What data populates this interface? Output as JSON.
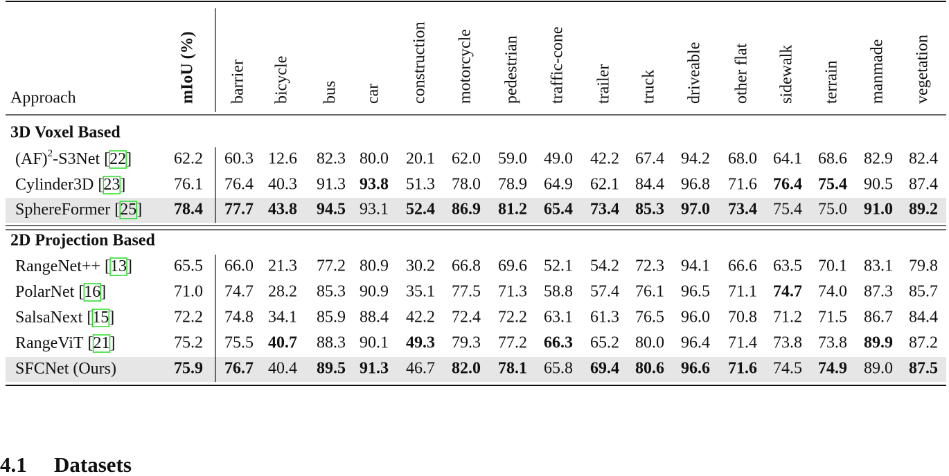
{
  "table": {
    "header": {
      "approach": "Approach",
      "columns": [
        "mIoU (%)",
        "barrier",
        "bicycle",
        "bus",
        "car",
        "construction",
        "motorcycle",
        "pedestrian",
        "traffic-cone",
        "trailer",
        "truck",
        "driveable",
        "other flat",
        "sidewalk",
        "terrain",
        "manmade",
        "vegetation"
      ]
    },
    "sections": [
      {
        "title": "3D Voxel Based",
        "rows": [
          {
            "name": "(AF)",
            "sup": "2",
            "suffix": "-S3Net",
            "cite": "[22]",
            "values": [
              "62.2",
              "60.3",
              "12.6",
              "82.3",
              "80.0",
              "20.1",
              "62.0",
              "59.0",
              "49.0",
              "42.2",
              "67.4",
              "94.2",
              "68.0",
              "64.1",
              "68.6",
              "82.9",
              "82.4"
            ],
            "bold": []
          },
          {
            "name": "Cylinder3D",
            "cite": "[23]",
            "values": [
              "76.1",
              "76.4",
              "40.3",
              "91.3",
              "93.8",
              "51.3",
              "78.0",
              "78.9",
              "64.9",
              "62.1",
              "84.4",
              "96.8",
              "71.6",
              "76.4",
              "75.4",
              "90.5",
              "87.4"
            ],
            "bold": [
              4,
              13,
              14
            ]
          },
          {
            "name": "SphereFormer",
            "cite": "[25]",
            "values": [
              "78.4",
              "77.7",
              "43.8",
              "94.5",
              "93.1",
              "52.4",
              "86.9",
              "81.2",
              "65.4",
              "73.4",
              "85.3",
              "97.0",
              "73.4",
              "75.4",
              "75.0",
              "91.0",
              "89.2"
            ],
            "bold": [
              0,
              1,
              2,
              3,
              5,
              6,
              7,
              8,
              9,
              10,
              11,
              12,
              15,
              16
            ],
            "highlight": true
          }
        ]
      },
      {
        "title": "2D Projection Based",
        "rows": [
          {
            "name": "RangeNet++",
            "cite": "[13]",
            "values": [
              "65.5",
              "66.0",
              "21.3",
              "77.2",
              "80.9",
              "30.2",
              "66.8",
              "69.6",
              "52.1",
              "54.2",
              "72.3",
              "94.1",
              "66.6",
              "63.5",
              "70.1",
              "83.1",
              "79.8"
            ],
            "bold": []
          },
          {
            "name": "PolarNet",
            "cite": "[16]",
            "values": [
              "71.0",
              "74.7",
              "28.2",
              "85.3",
              "90.9",
              "35.1",
              "77.5",
              "71.3",
              "58.8",
              "57.4",
              "76.1",
              "96.5",
              "71.1",
              "74.7",
              "74.0",
              "87.3",
              "85.7"
            ],
            "bold": [
              13
            ]
          },
          {
            "name": "SalsaNext",
            "cite": "[15]",
            "values": [
              "72.2",
              "74.8",
              "34.1",
              "85.9",
              "88.4",
              "42.2",
              "72.4",
              "72.2",
              "63.1",
              "61.3",
              "76.5",
              "96.0",
              "70.8",
              "71.2",
              "71.5",
              "86.7",
              "84.4"
            ],
            "bold": []
          },
          {
            "name": "RangeViT",
            "cite": "[21]",
            "values": [
              "75.2",
              "75.5",
              "40.7",
              "88.3",
              "90.1",
              "49.3",
              "79.3",
              "77.2",
              "66.3",
              "65.2",
              "80.0",
              "96.4",
              "71.4",
              "73.8",
              "73.8",
              "89.9",
              "87.2"
            ],
            "bold": [
              2,
              5,
              8,
              15
            ]
          },
          {
            "name": "SFCNet (Ours)",
            "values": [
              "75.9",
              "76.7",
              "40.4",
              "89.5",
              "91.3",
              "46.7",
              "82.0",
              "78.1",
              "65.8",
              "69.4",
              "80.6",
              "96.6",
              "71.6",
              "74.5",
              "74.9",
              "89.0",
              "87.5"
            ],
            "bold": [
              0,
              1,
              3,
              4,
              6,
              7,
              9,
              10,
              11,
              12,
              14,
              16
            ],
            "highlight": true
          }
        ]
      }
    ]
  },
  "section_heading": {
    "number": "4.1",
    "title": "Datasets"
  }
}
